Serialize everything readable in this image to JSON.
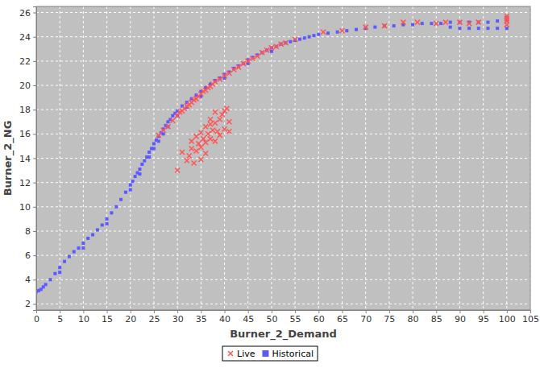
{
  "chart_data": {
    "type": "scatter",
    "x_label": "Burner_2_Demand",
    "y_label": "Burner_2_NG",
    "xlim": [
      0,
      105
    ],
    "ylim": [
      1.5,
      26.5
    ],
    "xticks": [
      0,
      5,
      10,
      15,
      20,
      25,
      30,
      35,
      40,
      45,
      50,
      55,
      60,
      65,
      70,
      75,
      80,
      85,
      90,
      95,
      100,
      105
    ],
    "yticks": [
      2,
      4,
      6,
      8,
      10,
      12,
      14,
      16,
      18,
      20,
      22,
      24,
      26
    ],
    "grid": true,
    "legend": "bottom",
    "series": [
      {
        "name": "Historical",
        "color": "#5a5aff",
        "marker": "square",
        "x": [
          0,
          0.5,
          1,
          1.5,
          2,
          3,
          4,
          5,
          6,
          7,
          8,
          9,
          10,
          11,
          12,
          13,
          14,
          15,
          16,
          17,
          18,
          19,
          20,
          20.5,
          21,
          21.5,
          22,
          22.5,
          23,
          23.5,
          24,
          24.5,
          25,
          25.5,
          26,
          26.5,
          27,
          27.5,
          28,
          28.5,
          29,
          29.5,
          30,
          31,
          32,
          33,
          34,
          35,
          36,
          37,
          38,
          39,
          40,
          41,
          42,
          43,
          44,
          45,
          46,
          47,
          48,
          49,
          50,
          51,
          52,
          53,
          54,
          55,
          56,
          57,
          58,
          59,
          60,
          62,
          64,
          66,
          68,
          70,
          72,
          74,
          76,
          78,
          80,
          82,
          84,
          86,
          88,
          90,
          92,
          94,
          96,
          98,
          100,
          100,
          88,
          90,
          92,
          94,
          96,
          98,
          100,
          5,
          10,
          15,
          20,
          22,
          24,
          25,
          26,
          27,
          28,
          30,
          32,
          35,
          40,
          45,
          50
        ],
        "values": [
          3.0,
          3.1,
          3.2,
          3.4,
          3.6,
          4.0,
          4.5,
          5.0,
          5.5,
          5.9,
          6.3,
          6.6,
          7.0,
          7.4,
          7.7,
          8.1,
          8.5,
          9.0,
          9.5,
          10.0,
          10.6,
          11.2,
          11.8,
          12.1,
          12.5,
          12.8,
          13.1,
          13.5,
          13.8,
          14.1,
          14.5,
          14.8,
          15.2,
          15.5,
          15.8,
          16.1,
          16.4,
          16.7,
          17.0,
          17.2,
          17.5,
          17.7,
          17.9,
          18.3,
          18.6,
          18.9,
          19.2,
          19.5,
          19.8,
          20.1,
          20.4,
          20.6,
          20.9,
          21.1,
          21.4,
          21.6,
          21.8,
          22.1,
          22.3,
          22.5,
          22.7,
          22.9,
          23.1,
          23.2,
          23.4,
          23.5,
          23.6,
          23.7,
          23.8,
          23.9,
          24.0,
          24.1,
          24.2,
          24.3,
          24.4,
          24.5,
          24.6,
          24.7,
          24.8,
          24.9,
          24.9,
          25.0,
          25.0,
          25.1,
          25.1,
          25.1,
          25.2,
          25.2,
          25.2,
          25.2,
          25.2,
          25.3,
          25.3,
          25.6,
          24.8,
          24.7,
          24.7,
          24.7,
          24.7,
          24.7,
          24.7,
          4.6,
          6.6,
          8.6,
          11.4,
          12.7,
          14.1,
          14.8,
          15.4,
          16.0,
          16.6,
          17.5,
          18.2,
          19.1,
          20.6,
          21.8,
          22.8
        ]
      },
      {
        "name": "Live",
        "color": "#ff5555",
        "marker": "x",
        "x": [
          26,
          27,
          28,
          29,
          30,
          30.5,
          31,
          31.5,
          32,
          32.5,
          33,
          33.5,
          34,
          34.5,
          35,
          35.5,
          36,
          36.5,
          37,
          37.5,
          38,
          39,
          40,
          41,
          42,
          43,
          44,
          45,
          46,
          47,
          48,
          49,
          50,
          51,
          52,
          53,
          55,
          61,
          65,
          70,
          74,
          78,
          81,
          85,
          87,
          90,
          92,
          94,
          100,
          100,
          100,
          100,
          30,
          31,
          32,
          32.5,
          33,
          33,
          34,
          34,
          34.5,
          35,
          35,
          35.5,
          36,
          36,
          36.5,
          37,
          37,
          37.5,
          38,
          38,
          38.5,
          39,
          39,
          39.5,
          40,
          40,
          40.5,
          41,
          41,
          36,
          35,
          33.5,
          37,
          38
        ],
        "values": [
          15.9,
          16.3,
          16.6,
          17.1,
          17.5,
          17.8,
          17.9,
          18.1,
          18.3,
          18.4,
          18.6,
          18.8,
          18.9,
          19.1,
          19.3,
          19.5,
          19.6,
          19.8,
          19.9,
          20.1,
          20.3,
          20.5,
          20.8,
          21.0,
          21.3,
          21.5,
          21.8,
          22.0,
          22.2,
          22.4,
          22.7,
          22.9,
          23.1,
          23.2,
          23.4,
          23.5,
          23.8,
          24.4,
          24.5,
          24.8,
          24.9,
          25.2,
          25.2,
          25.1,
          25.2,
          25.2,
          25.1,
          25.2,
          25.0,
          25.3,
          25.5,
          25.7,
          13.0,
          14.5,
          13.8,
          14.2,
          14.8,
          15.4,
          14.6,
          15.8,
          15.2,
          14.9,
          16.1,
          15.6,
          15.3,
          16.6,
          16.0,
          15.6,
          16.8,
          16.3,
          15.4,
          16.9,
          16.2,
          15.9,
          17.2,
          17.6,
          16.4,
          17.9,
          18.1,
          17.0,
          16.2,
          14.4,
          13.9,
          13.6,
          17.2,
          17.8
        ]
      }
    ]
  }
}
